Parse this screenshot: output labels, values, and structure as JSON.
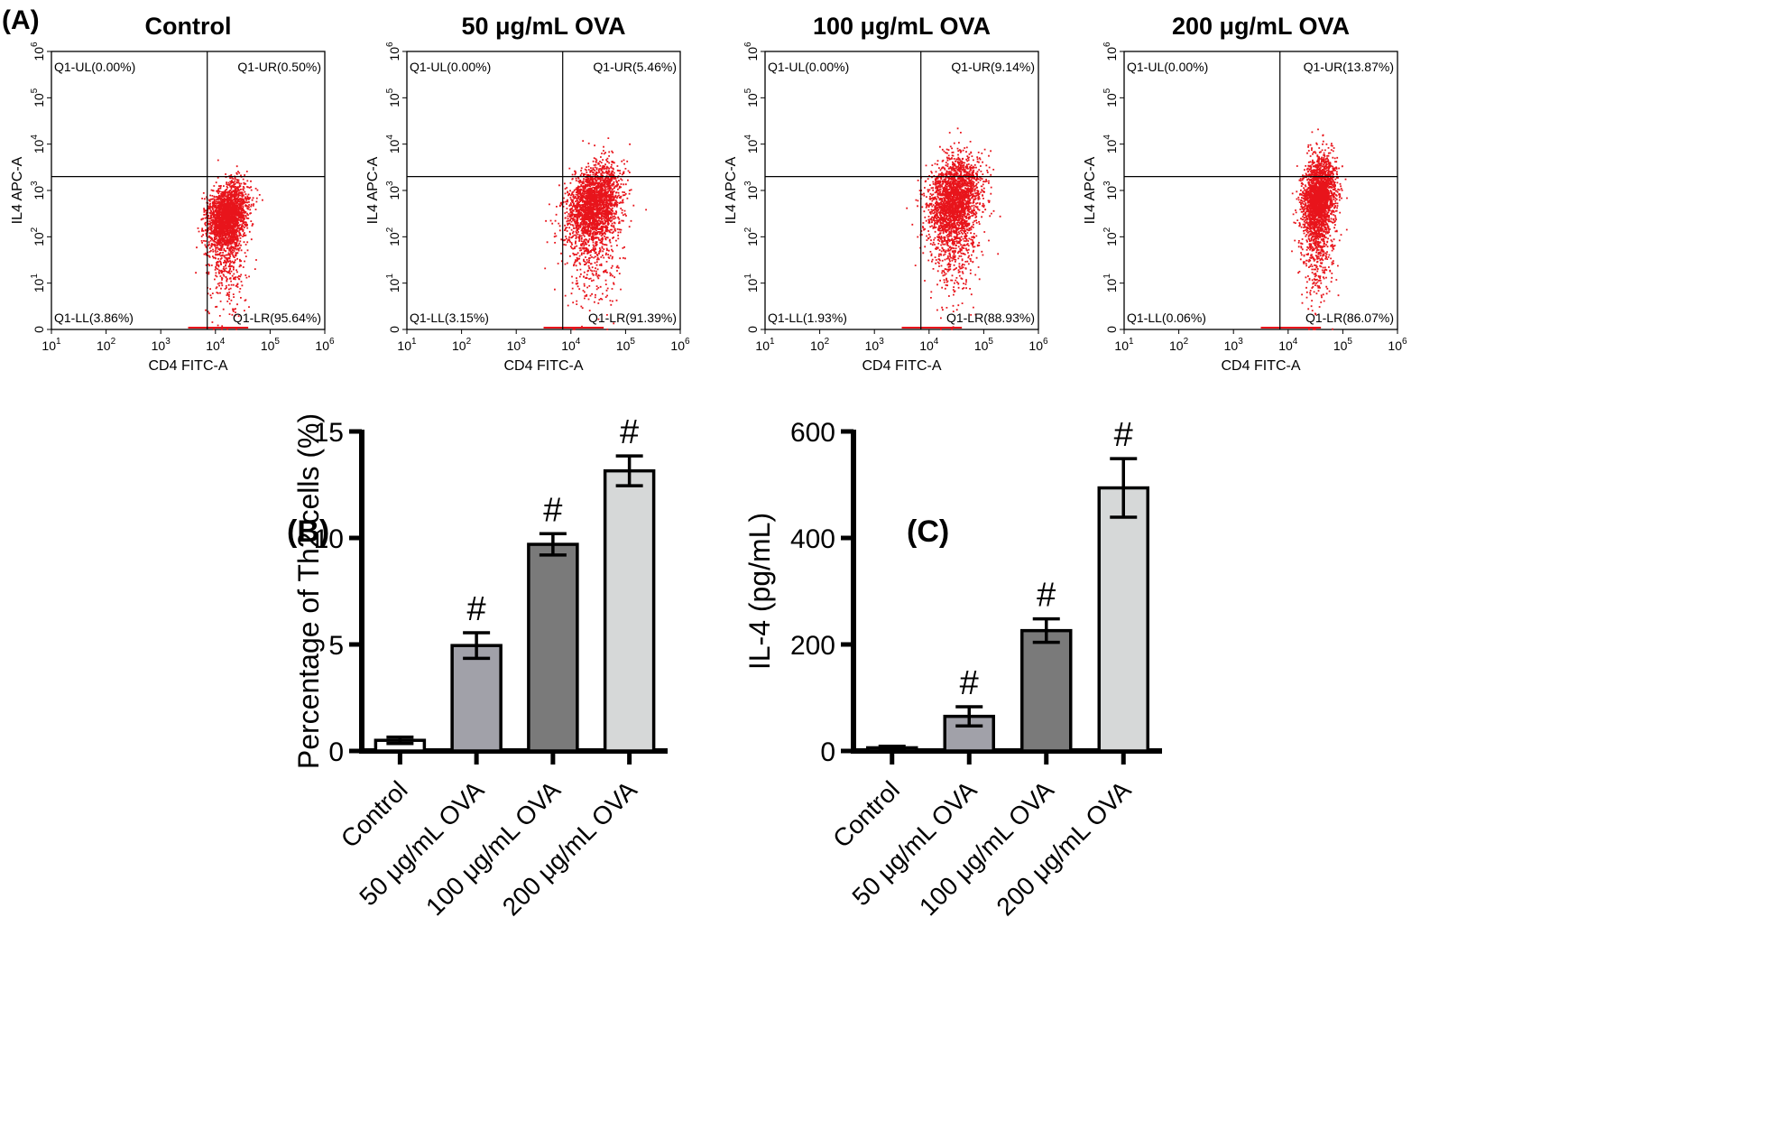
{
  "figure": {
    "panel_labels": [
      "(A)",
      "(B)",
      "(C)"
    ]
  },
  "chart_data": [
    {
      "panel": "(A)",
      "type": "scatter",
      "subtype": "flow-cytometry",
      "xlabel": "CD4 FITC-A",
      "ylabel": "IL4 APC-A",
      "x_ticks": [
        {
          "base": "10",
          "exp": "1"
        },
        {
          "base": "10",
          "exp": "2"
        },
        {
          "base": "10",
          "exp": "3"
        },
        {
          "base": "10",
          "exp": "4"
        },
        {
          "base": "10",
          "exp": "5"
        },
        {
          "base": "10",
          "exp": "6"
        }
      ],
      "y_ticks": [
        {
          "base": "0",
          "exp": ""
        },
        {
          "base": "10",
          "exp": "1"
        },
        {
          "base": "10",
          "exp": "2"
        },
        {
          "base": "10",
          "exp": "3"
        },
        {
          "base": "10",
          "exp": "4"
        },
        {
          "base": "10",
          "exp": "5"
        },
        {
          "base": "10",
          "exp": "6"
        }
      ],
      "xlim_log10": [
        1,
        6
      ],
      "ylim_log10": [
        0,
        6
      ],
      "gate_log10": {
        "x": 3.85,
        "y": 3.3
      },
      "point_color": "#e8141b",
      "plots": [
        {
          "title": "Control",
          "quadrants": {
            "UL": "Q1-UL(0.00%)",
            "UR": "Q1-UR(0.50%)",
            "LL": "Q1-LL(3.86%)",
            "LR": "Q1-LR(95.64%)"
          },
          "cluster": {
            "cx": 4.2,
            "cy": 2.5,
            "sx": 0.18,
            "sy": 0.32,
            "tail": 0.25
          },
          "seed": 11
        },
        {
          "title": "50 μg/mL OVA",
          "quadrants": {
            "UL": "Q1-UL(0.00%)",
            "UR": "Q1-UR(5.46%)",
            "LL": "Q1-LL(3.15%)",
            "LR": "Q1-LR(91.39%)"
          },
          "cluster": {
            "cx": 4.4,
            "cy": 2.75,
            "sx": 0.24,
            "sy": 0.38,
            "tail": 0.3
          },
          "seed": 23
        },
        {
          "title": "100 μg/mL OVA",
          "quadrants": {
            "UL": "Q1-UL(0.00%)",
            "UR": "Q1-UR(9.14%)",
            "LL": "Q1-LL(1.93%)",
            "LR": "Q1-LR(88.93%)"
          },
          "cluster": {
            "cx": 4.45,
            "cy": 2.9,
            "sx": 0.24,
            "sy": 0.42,
            "tail": 0.35
          },
          "seed": 37
        },
        {
          "title": "200 μg/mL OVA",
          "quadrants": {
            "UL": "Q1-UL(0.00%)",
            "UR": "Q1-UR(13.87%)",
            "LL": "Q1-LL(0.06%)",
            "LR": "Q1-LR(86.07%)"
          },
          "cluster": {
            "cx": 4.55,
            "cy": 2.9,
            "sx": 0.15,
            "sy": 0.42,
            "tail": 0.3
          },
          "seed": 53
        }
      ]
    },
    {
      "panel": "(B)",
      "type": "bar",
      "ylabel": "Percentage of Th2 cells (%)",
      "categories": [
        "Control",
        "50 μg/mL OVA",
        "100 μg/mL OVA",
        "200 μg/mL OVA"
      ],
      "values": [
        0.5,
        4.95,
        9.7,
        13.15
      ],
      "errors": [
        0.15,
        0.6,
        0.5,
        0.7
      ],
      "annotations": [
        "",
        "#",
        "#",
        "#"
      ],
      "bar_colors": [
        "#ffffff",
        "#a1a1a9",
        "#7a7a7a",
        "#d6d8d8"
      ],
      "ylim": [
        0,
        15
      ],
      "y_ticks": [
        "0",
        "5",
        "10",
        "15"
      ]
    },
    {
      "panel": "(C)",
      "type": "bar",
      "ylabel": "IL-4 (pg/mL)",
      "categories": [
        "Control",
        "50 μg/mL OVA",
        "100 μg/mL OVA",
        "200 μg/mL OVA"
      ],
      "values": [
        6,
        65,
        226,
        494
      ],
      "errors": [
        3,
        18,
        22,
        55
      ],
      "annotations": [
        "",
        "#",
        "#",
        "#"
      ],
      "bar_colors": [
        "#ffffff",
        "#a1a1a9",
        "#7a7a7a",
        "#d6d8d8"
      ],
      "ylim": [
        0,
        600
      ],
      "y_ticks": [
        "0",
        "200",
        "400",
        "600"
      ]
    }
  ]
}
